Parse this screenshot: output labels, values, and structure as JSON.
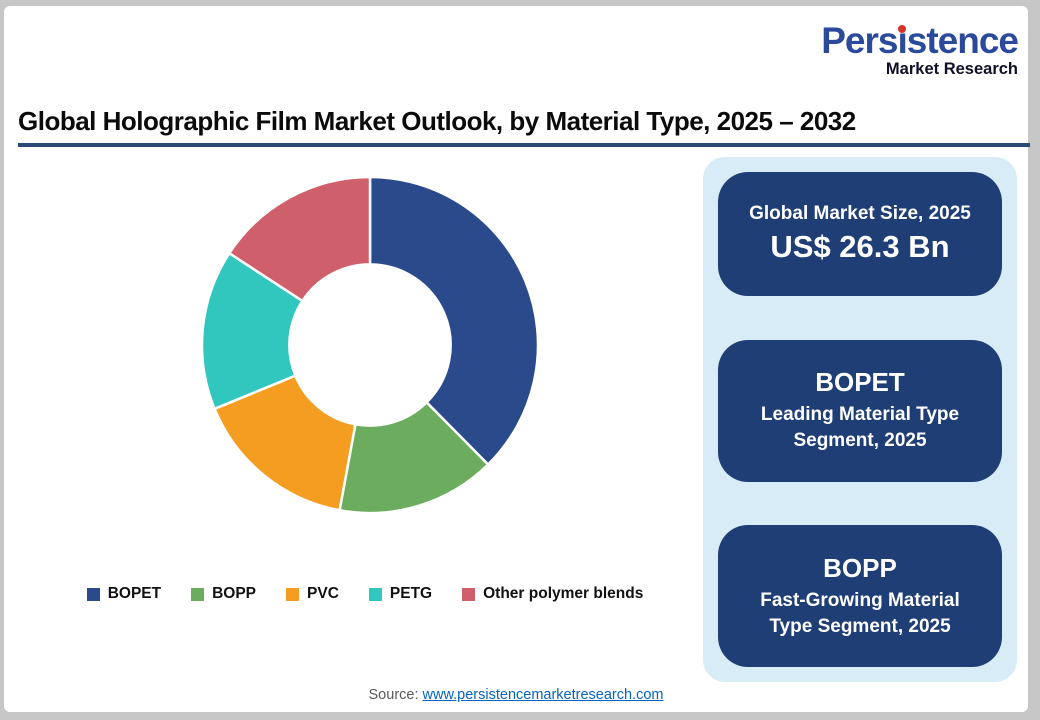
{
  "page": {
    "title": "Global Holographic Film Market Outlook, by Material Type, 2025 – 2032",
    "source_label": "Source:",
    "source_link_text": "www.persistencemarketresearch.com"
  },
  "logo": {
    "brand_full": "Persistence",
    "brand_pre": "Pers",
    "brand_i": "ı",
    "brand_post": "stence",
    "subtitle": "Market Research",
    "brand_color": "#2b4a9c",
    "dot_color": "#d93327"
  },
  "chart_data": {
    "type": "pie",
    "variant": "donut",
    "title": "Global Holographic Film Market Outlook, by Material Type, 2025 – 2032",
    "unit": "% share of market, 2025 (estimated from arc angles)",
    "donut_hole_ratio": 0.48,
    "start_angle_deg": 0,
    "legend_position": "bottom",
    "segments": [
      {
        "label": "BOPET",
        "value": 37.6,
        "color": "#2b4a8c"
      },
      {
        "label": "BOPP",
        "value": 15.3,
        "color": "#6cac5f"
      },
      {
        "label": "PVC",
        "value": 15.9,
        "color": "#f59d20"
      },
      {
        "label": "PETG",
        "value": 15.4,
        "color": "#31c6be"
      },
      {
        "label": "Other polymer blends",
        "value": 15.8,
        "color": "#cf5f6b"
      }
    ]
  },
  "info_panel": {
    "background": "#d8ecf8",
    "card_color": "#1f3e76",
    "cards": [
      {
        "heading": "Global Market Size, 2025",
        "value": "US$ 26.3 Bn"
      },
      {
        "heading": "BOPET",
        "sub": "Leading Material Type Segment, 2025"
      },
      {
        "heading": "BOPP",
        "sub": "Fast-Growing Material Type Segment, 2025"
      }
    ]
  }
}
